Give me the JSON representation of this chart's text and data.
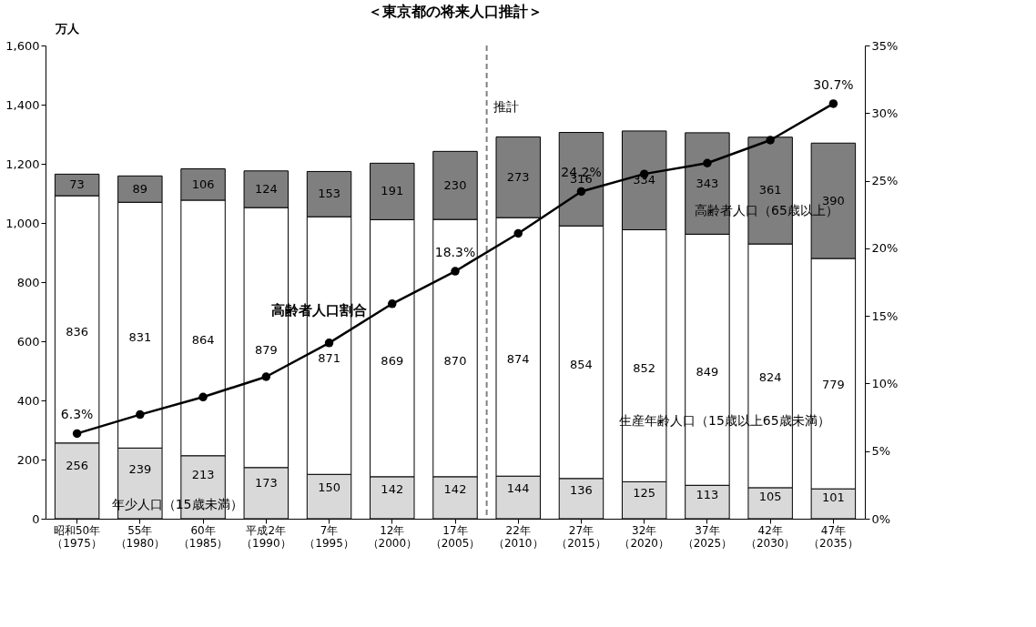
{
  "chart_data": {
    "type": "bar",
    "title": "＜東京都の将来人口推計＞",
    "ylabel": "万人",
    "stacked": true,
    "data_labels": true,
    "grid": false,
    "categories": [
      "昭和50年（1975）",
      "55年（1980）",
      "60年（1985）",
      "平成2年（1990）",
      "7年（1995）",
      "12年（2000）",
      "17年（2005）",
      "22年（2010）",
      "27年（2015）",
      "32年（2020）",
      "37年（2025）",
      "42年（2030）",
      "47年（2035）"
    ],
    "series": [
      {
        "name": "年少人口（15歳未満）",
        "color": "#d9d9d9",
        "values": [
          256,
          239,
          213,
          173,
          150,
          142,
          142,
          144,
          136,
          125,
          113,
          105,
          101
        ]
      },
      {
        "name": "生産年齢人口（15歳以上65歳未満）",
        "color": "#ffffff",
        "values": [
          836,
          831,
          864,
          879,
          871,
          869,
          870,
          874,
          854,
          852,
          849,
          824,
          779
        ]
      },
      {
        "name": "高齢者人口（65歳以上）",
        "color": "#7f7f7f",
        "values": [
          73,
          89,
          106,
          124,
          153,
          191,
          230,
          273,
          316,
          334,
          343,
          361,
          390
        ]
      },
      {
        "name": "高齢者人口割合",
        "type": "line",
        "axis": "y2",
        "color": "#000000",
        "marker": "circle",
        "line_style": "solid",
        "values": [
          6.3,
          7.7,
          9.0,
          10.5,
          13.0,
          15.9,
          18.3,
          21.1,
          24.2,
          25.5,
          26.3,
          28.0,
          30.7
        ],
        "value_labels": [
          "6.3%",
          null,
          null,
          null,
          null,
          null,
          "18.3%",
          null,
          "24.2%",
          null,
          null,
          null,
          "30.7%"
        ]
      }
    ],
    "ylim": [
      0,
      1600
    ],
    "yticks": [
      0,
      200,
      400,
      600,
      800,
      {
        "value": 1000,
        "label": "1,000"
      },
      {
        "value": 1200,
        "label": "1,200"
      },
      {
        "value": 1400,
        "label": "1,400"
      },
      {
        "value": 1600,
        "label": "1,600"
      }
    ],
    "y2lim": [
      0,
      35
    ],
    "y2ticks": [
      {
        "value": 0,
        "label": "0%"
      },
      {
        "value": 5,
        "label": "5%"
      },
      {
        "value": 10,
        "label": "10%"
      },
      {
        "value": 15,
        "label": "15%"
      },
      {
        "value": 20,
        "label": "20%"
      },
      {
        "value": 25,
        "label": "25%"
      },
      {
        "value": 30,
        "label": "30%"
      },
      {
        "value": 35,
        "label": "35%"
      }
    ],
    "annotations": [
      "推計"
    ]
  }
}
